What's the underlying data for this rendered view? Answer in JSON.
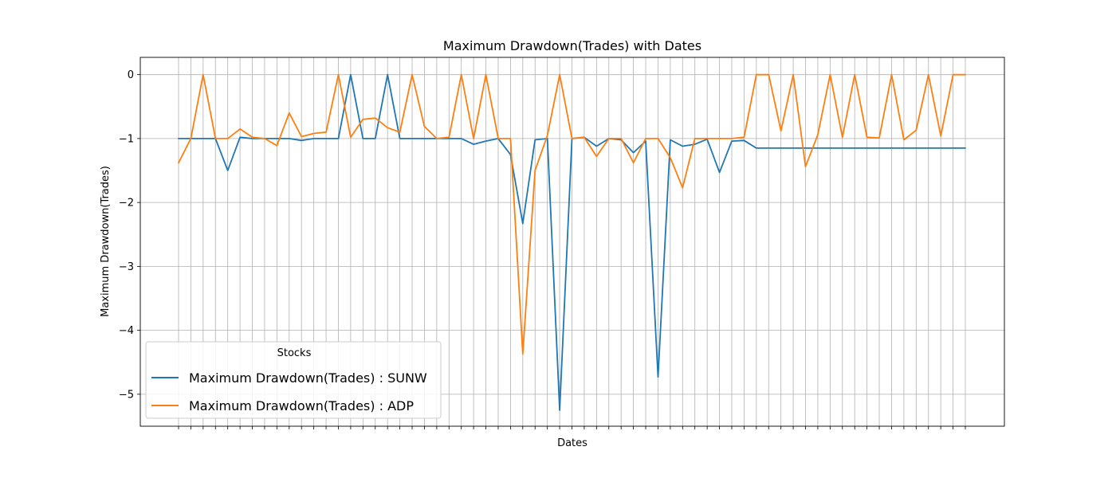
{
  "chart_data": {
    "type": "line",
    "title": "Maximum Drawdown(Trades) with Dates",
    "xlabel": "Dates",
    "ylabel": "Maximum Drawdown(Trades)",
    "ylim": [
      -5.5,
      0.27
    ],
    "yticks": [
      0,
      -1,
      -2,
      -3,
      -4,
      -5
    ],
    "ytick_labels": [
      "0",
      "−1",
      "−2",
      "−3",
      "−4",
      "−5"
    ],
    "x_tick_count": 65,
    "x_tick_labels_shown": false,
    "grid": true,
    "legend": {
      "title": "Stocks",
      "position": "lower-left"
    },
    "series": [
      {
        "name": "Maximum Drawdown(Trades) : SUNW",
        "color": "#1f77b4",
        "values": [
          -1.0,
          -1.0,
          -1.0,
          -1.0,
          -1.5,
          -0.98,
          -1.0,
          -1.0,
          -1.0,
          -1.0,
          -1.03,
          -1.0,
          -1.0,
          -1.0,
          0.0,
          -1.0,
          -1.0,
          0.0,
          -1.0,
          -1.0,
          -1.0,
          -1.0,
          -1.0,
          -1.0,
          -1.09,
          -1.04,
          -1.0,
          -1.25,
          -2.33,
          -1.02,
          -1.0,
          -5.25,
          -1.0,
          -0.98,
          -1.12,
          -1.0,
          -1.02,
          -1.22,
          -1.04,
          -4.73,
          -1.02,
          -1.12,
          -1.09,
          -1.01,
          -1.53,
          -1.04,
          -1.03,
          -1.15,
          -1.15,
          -1.15,
          -1.15,
          -1.15,
          -1.15,
          -1.15,
          -1.15,
          -1.15,
          -1.15,
          -1.15,
          -1.15,
          -1.15,
          -1.15,
          -1.15,
          -1.15,
          -1.15,
          -1.15
        ]
      },
      {
        "name": "Maximum Drawdown(Trades) : ADP",
        "color": "#ff7f0e",
        "values": [
          -1.38,
          -1.0,
          0.0,
          -1.0,
          -1.0,
          -0.85,
          -0.98,
          -1.0,
          -1.11,
          -0.6,
          -0.97,
          -0.92,
          -0.9,
          0.0,
          -0.98,
          -0.7,
          -0.68,
          -0.83,
          -0.9,
          0.0,
          -0.81,
          -1.0,
          -0.98,
          0.0,
          -1.0,
          0.0,
          -1.0,
          -1.0,
          -4.37,
          -1.5,
          -0.95,
          0.0,
          -1.0,
          -0.98,
          -1.28,
          -1.0,
          -1.0,
          -1.38,
          -1.0,
          -1.0,
          -1.3,
          -1.77,
          -1.0,
          -1.0,
          -1.0,
          -1.0,
          -0.98,
          0.0,
          0.0,
          -0.88,
          0.0,
          -1.44,
          -0.94,
          0.0,
          -0.98,
          0.0,
          -0.98,
          -0.99,
          0.0,
          -1.02,
          -0.87,
          0.0,
          -0.96,
          0.0,
          0.0
        ]
      }
    ]
  }
}
